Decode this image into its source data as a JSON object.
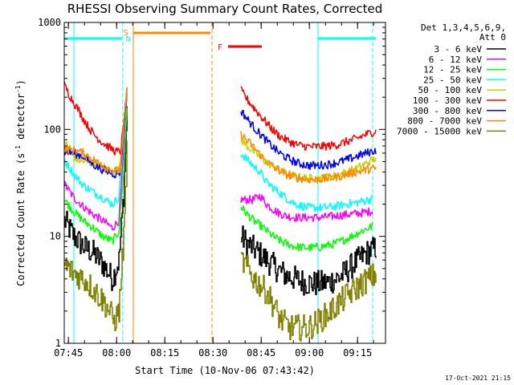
{
  "chart_data": {
    "type": "line",
    "title": "RHESSI Observing Summary Count Rates, Corrected",
    "xlabel": "Start Time (10-Nov-06 07:43:42)",
    "ylabel_main": "Corrected Count Rate (s",
    "ylabel_sup1": "-1",
    "ylabel_mid": " detector",
    "ylabel_sup2": "-1",
    "ylabel_end": ")",
    "y_scale": "log",
    "ylim": [
      1,
      1000
    ],
    "xlim_minutes": [
      0,
      100
    ],
    "x_ticks": [
      {
        "label": "07:45",
        "minute": 1.3
      },
      {
        "label": "08:00",
        "minute": 16.3
      },
      {
        "label": "08:15",
        "minute": 31.3
      },
      {
        "label": "08:30",
        "minute": 46.3
      },
      {
        "label": "08:45",
        "minute": 61.3
      },
      {
        "label": "09:00",
        "minute": 76.3
      },
      {
        "label": "09:15",
        "minute": 91.3
      }
    ],
    "y_ticks": [
      {
        "label": "1",
        "value": 1
      },
      {
        "label": "10",
        "value": 10
      },
      {
        "label": "100",
        "value": 100
      },
      {
        "label": "1000",
        "value": 1000
      }
    ],
    "legend_header": [
      "Det 1,3,4,5,6,9,",
      "Att 0"
    ],
    "legend_position": "right",
    "series": [
      {
        "name": "3 - 6 keV",
        "color": "#000000",
        "seg1": [
          [
            0,
            14
          ],
          [
            3,
            10
          ],
          [
            6,
            8
          ],
          [
            9,
            7
          ],
          [
            12,
            5.5
          ],
          [
            15,
            4
          ],
          [
            17,
            6
          ],
          [
            18.5,
            25
          ],
          [
            19.5,
            150
          ]
        ],
        "seg2": [
          [
            55,
            10
          ],
          [
            57,
            8.5
          ],
          [
            60,
            7.2
          ],
          [
            63,
            6
          ],
          [
            66,
            5
          ],
          [
            69,
            4.3
          ],
          [
            72,
            4
          ],
          [
            75,
            3.7
          ],
          [
            78,
            3.6
          ],
          [
            82,
            3.7
          ],
          [
            86,
            4.2
          ],
          [
            90,
            5.5
          ],
          [
            94,
            7
          ],
          [
            97,
            7.8
          ]
        ]
      },
      {
        "name": "6 - 12 keV",
        "color": "#ff00ff",
        "seg1": [
          [
            0,
            31
          ],
          [
            3,
            23
          ],
          [
            6,
            19
          ],
          [
            9,
            16
          ],
          [
            12,
            14
          ],
          [
            15,
            12
          ],
          [
            17,
            14
          ],
          [
            18.5,
            60
          ],
          [
            19.5,
            200
          ]
        ],
        "seg2": [
          [
            55,
            22
          ],
          [
            57,
            22
          ],
          [
            59,
            22
          ],
          [
            61,
            24
          ],
          [
            63,
            20
          ],
          [
            66,
            17
          ],
          [
            69,
            15.5
          ],
          [
            72,
            15
          ],
          [
            76,
            15
          ],
          [
            80,
            15
          ],
          [
            84,
            15.5
          ],
          [
            88,
            16
          ],
          [
            92,
            16.5
          ],
          [
            96,
            17.2
          ]
        ]
      },
      {
        "name": "12 - 25 keV",
        "color": "#00ff00",
        "seg1": [
          [
            0,
            22
          ],
          [
            3,
            17
          ],
          [
            6,
            14
          ],
          [
            9,
            12
          ],
          [
            12,
            10
          ],
          [
            15,
            9
          ],
          [
            17,
            11
          ],
          [
            18.5,
            40
          ],
          [
            19.5,
            160
          ]
        ],
        "seg2": [
          [
            55,
            19
          ],
          [
            57,
            16
          ],
          [
            59,
            14
          ],
          [
            62,
            12
          ],
          [
            65,
            10
          ],
          [
            68,
            8.8
          ],
          [
            72,
            8
          ],
          [
            76,
            7.8
          ],
          [
            80,
            8
          ],
          [
            84,
            8.5
          ],
          [
            88,
            9.5
          ],
          [
            92,
            11
          ],
          [
            96,
            12.5
          ]
        ]
      },
      {
        "name": "25 - 50 keV",
        "color": "#00ffff",
        "seg1": [
          [
            0,
            52
          ],
          [
            3,
            38
          ],
          [
            6,
            30
          ],
          [
            9,
            26
          ],
          [
            12,
            23
          ],
          [
            15,
            20
          ],
          [
            17,
            23
          ],
          [
            18.5,
            90
          ],
          [
            19.5,
            220
          ]
        ],
        "seg2": [
          [
            55,
            60
          ],
          [
            57,
            52
          ],
          [
            59,
            45
          ],
          [
            61,
            40
          ],
          [
            63,
            32
          ],
          [
            66,
            27
          ],
          [
            69,
            23
          ],
          [
            72,
            20
          ],
          [
            76,
            18.5
          ],
          [
            80,
            18.5
          ],
          [
            84,
            19
          ],
          [
            88,
            20
          ],
          [
            92,
            21
          ],
          [
            96,
            22.5
          ]
        ]
      },
      {
        "name": "50 - 100 keV",
        "color": "#cccc00",
        "seg1": [
          [
            0,
            80
          ],
          [
            2,
            60
          ],
          [
            4,
            52
          ],
          [
            6,
            50
          ],
          [
            9,
            48
          ],
          [
            12,
            45
          ],
          [
            15,
            40
          ],
          [
            17,
            42
          ],
          [
            18.5,
            100
          ],
          [
            19.5,
            230
          ]
        ],
        "seg2": [
          [
            55,
            80
          ],
          [
            57,
            70
          ],
          [
            59,
            62
          ],
          [
            62,
            52
          ],
          [
            65,
            45
          ],
          [
            68,
            40
          ],
          [
            71,
            37
          ],
          [
            75,
            35
          ],
          [
            79,
            35
          ],
          [
            83,
            36
          ],
          [
            87,
            39
          ],
          [
            91,
            43
          ],
          [
            95,
            50
          ],
          [
            97,
            54
          ]
        ]
      },
      {
        "name": "100 - 300 keV",
        "color": "#ff0000",
        "seg1": [
          [
            0,
            260
          ],
          [
            2,
            200
          ],
          [
            4,
            160
          ],
          [
            6,
            125
          ],
          [
            8,
            100
          ],
          [
            10,
            85
          ],
          [
            12,
            75
          ],
          [
            14,
            68
          ],
          [
            16,
            62
          ],
          [
            17.5,
            62
          ],
          [
            18.5,
            110
          ],
          [
            19.5,
            230
          ]
        ],
        "seg2": [
          [
            55,
            230
          ],
          [
            57,
            190
          ],
          [
            59,
            160
          ],
          [
            61,
            135
          ],
          [
            63,
            115
          ],
          [
            65,
            98
          ],
          [
            67,
            87
          ],
          [
            69,
            80
          ],
          [
            71,
            75
          ],
          [
            73,
            71
          ],
          [
            76,
            69
          ],
          [
            79,
            69
          ],
          [
            82,
            70
          ],
          [
            85,
            72
          ],
          [
            88,
            77
          ],
          [
            91,
            82
          ],
          [
            94,
            90
          ],
          [
            97,
            96
          ]
        ]
      },
      {
        "name": "300 - 800 keV",
        "color": "#0000ff",
        "seg1": [
          [
            0,
            62
          ],
          [
            3,
            60
          ],
          [
            6,
            56
          ],
          [
            8,
            50
          ],
          [
            10,
            45
          ],
          [
            12,
            42
          ],
          [
            14,
            40
          ],
          [
            16,
            38
          ],
          [
            17.5,
            40
          ],
          [
            18.5,
            110
          ],
          [
            19.5,
            230
          ]
        ],
        "seg2": [
          [
            55,
            150
          ],
          [
            57,
            125
          ],
          [
            59,
            105
          ],
          [
            61,
            90
          ],
          [
            63,
            78
          ],
          [
            65,
            68
          ],
          [
            67,
            60
          ],
          [
            69,
            55
          ],
          [
            71,
            51
          ],
          [
            73,
            48
          ],
          [
            76,
            46
          ],
          [
            79,
            46
          ],
          [
            82,
            47
          ],
          [
            85,
            49
          ],
          [
            88,
            52
          ],
          [
            91,
            56
          ],
          [
            94,
            60
          ],
          [
            97,
            64
          ]
        ]
      },
      {
        "name": "800 - 7000 keV",
        "color": "#ff8800",
        "seg1": [
          [
            0,
            66
          ],
          [
            3,
            64
          ],
          [
            6,
            60
          ],
          [
            8,
            55
          ],
          [
            10,
            50
          ],
          [
            12,
            46
          ],
          [
            14,
            43
          ],
          [
            16,
            41
          ],
          [
            17.5,
            42
          ],
          [
            18.5,
            110
          ],
          [
            19.5,
            230
          ]
        ],
        "seg2": [
          [
            55,
            90
          ],
          [
            57,
            78
          ],
          [
            59,
            68
          ],
          [
            61,
            58
          ],
          [
            63,
            50
          ],
          [
            65,
            45
          ],
          [
            67,
            41
          ],
          [
            69,
            38
          ],
          [
            71,
            36
          ],
          [
            73,
            35
          ],
          [
            76,
            34
          ],
          [
            79,
            34
          ],
          [
            82,
            35
          ],
          [
            85,
            36
          ],
          [
            88,
            38
          ],
          [
            91,
            40
          ],
          [
            94,
            42
          ],
          [
            97,
            43
          ]
        ]
      },
      {
        "name": "7000 - 15000 keV",
        "color": "#808000",
        "seg1": [
          [
            0,
            5.5
          ],
          [
            3,
            4.5
          ],
          [
            6,
            4
          ],
          [
            9,
            3.2
          ],
          [
            12,
            2.5
          ],
          [
            14,
            2
          ],
          [
            15.5,
            1.6
          ],
          [
            17,
            2
          ],
          [
            18.5,
            10
          ],
          [
            19.5,
            60
          ]
        ],
        "seg2": [
          [
            55,
            6
          ],
          [
            57,
            5
          ],
          [
            59,
            4
          ],
          [
            61,
            3.5
          ],
          [
            63,
            3
          ],
          [
            65,
            2.3
          ],
          [
            67,
            1.7
          ],
          [
            70,
            1.4
          ],
          [
            73,
            1.4
          ],
          [
            76,
            1.4
          ],
          [
            79,
            1.6
          ],
          [
            82,
            1.9
          ],
          [
            85,
            2.3
          ],
          [
            88,
            2.8
          ],
          [
            91,
            3.3
          ],
          [
            94,
            3.9
          ],
          [
            97,
            4.4
          ]
        ]
      }
    ],
    "annotations": {
      "S": "S",
      "N": "N",
      "F": "F",
      "s_color": "#ff8800",
      "n_color": "#00ffff",
      "f_color": "#ff0000",
      "saa_color": "#00ffff",
      "night_color": "#ff8800",
      "flare_color": "#ff0000"
    }
  },
  "footer_date": "17-Oct-2021 21:15"
}
